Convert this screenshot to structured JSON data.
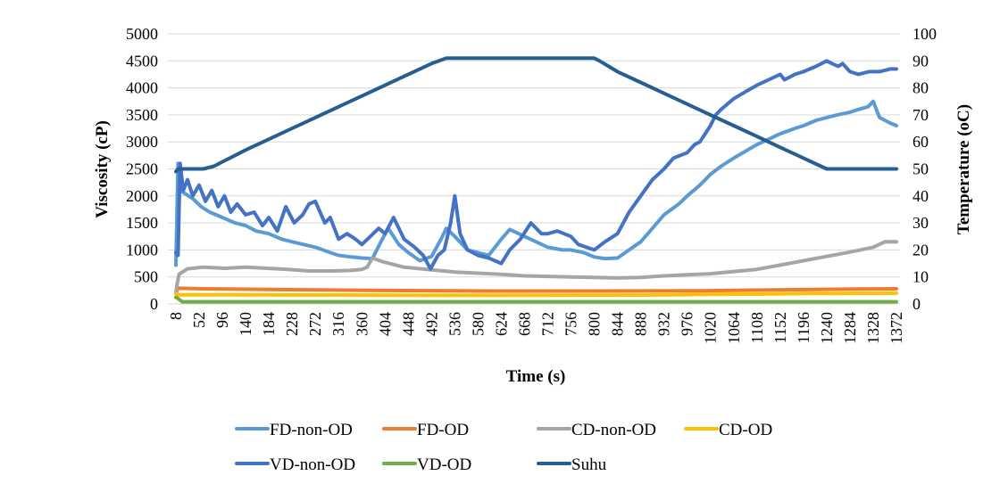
{
  "chart_data": {
    "type": "line",
    "title": "",
    "xlabel": "Time (s)",
    "ylabel": "Viscosity (cP)",
    "y2label": "Temperature (oC)",
    "ylim": [
      0,
      5000
    ],
    "y2lim": [
      0,
      100
    ],
    "yticks": [
      "0",
      "500",
      "1000",
      "1500",
      "2000",
      "2500",
      "3000",
      "3500",
      "4000",
      "4500",
      "5000"
    ],
    "y2ticks": [
      "0",
      "10",
      "20",
      "30",
      "40",
      "50",
      "60",
      "70",
      "80",
      "90",
      "100"
    ],
    "xticks": [
      "8",
      "52",
      "96",
      "140",
      "184",
      "228",
      "272",
      "316",
      "360",
      "404",
      "448",
      "492",
      "536",
      "580",
      "624",
      "668",
      "712",
      "756",
      "800",
      "844",
      "888",
      "932",
      "976",
      "1020",
      "1064",
      "1108",
      "1152",
      "1196",
      "1240",
      "1284",
      "1328",
      "1372"
    ],
    "xlim": [
      8,
      1372
    ],
    "grid": true,
    "legend_position": "bottom",
    "series": [
      {
        "name": "FD-non-OD",
        "axis": "left",
        "color": "#5B9BD5",
        "x": [
          8,
          12,
          16,
          24,
          40,
          56,
          72,
          96,
          120,
          140,
          160,
          184,
          208,
          228,
          250,
          272,
          300,
          316,
          340,
          360,
          380,
          396,
          410,
          430,
          448,
          470,
          492,
          510,
          520,
          536,
          560,
          580,
          600,
          624,
          640,
          668,
          690,
          712,
          740,
          756,
          780,
          800,
          820,
          844,
          866,
          888,
          910,
          932,
          960,
          976,
          1000,
          1020,
          1040,
          1064,
          1090,
          1108,
          1130,
          1152,
          1180,
          1196,
          1220,
          1240,
          1260,
          1284,
          1300,
          1318,
          1328,
          1340,
          1360,
          1372
        ],
        "y": [
          720,
          2600,
          2100,
          2050,
          1950,
          1800,
          1700,
          1600,
          1500,
          1450,
          1350,
          1300,
          1200,
          1150,
          1100,
          1050,
          950,
          900,
          870,
          850,
          840,
          1150,
          1400,
          1100,
          950,
          800,
          880,
          1200,
          1400,
          1250,
          1000,
          950,
          900,
          1200,
          1380,
          1250,
          1150,
          1050,
          1000,
          1000,
          950,
          870,
          840,
          850,
          1000,
          1150,
          1400,
          1650,
          1850,
          2000,
          2200,
          2400,
          2550,
          2700,
          2850,
          2950,
          3050,
          3150,
          3250,
          3300,
          3400,
          3450,
          3500,
          3550,
          3600,
          3650,
          3750,
          3450,
          3350,
          3300
        ]
      },
      {
        "name": "FD-OD",
        "axis": "left",
        "color": "#ED7D31",
        "x": [
          8,
          12,
          60,
          200,
          400,
          600,
          800,
          1000,
          1100,
          1200,
          1300,
          1372
        ],
        "y": [
          200,
          290,
          280,
          265,
          250,
          240,
          240,
          245,
          255,
          265,
          275,
          280
        ]
      },
      {
        "name": "CD-non-OD",
        "axis": "left",
        "color": "#A5A5A5",
        "x": [
          8,
          10,
          14,
          30,
          60,
          100,
          140,
          180,
          220,
          260,
          300,
          340,
          360,
          370,
          380,
          400,
          440,
          492,
          536,
          580,
          624,
          668,
          712,
          756,
          800,
          844,
          888,
          932,
          976,
          1020,
          1064,
          1108,
          1152,
          1196,
          1240,
          1284,
          1328,
          1350,
          1372
        ],
        "y": [
          200,
          350,
          550,
          650,
          680,
          660,
          680,
          660,
          640,
          610,
          610,
          620,
          640,
          680,
          850,
          780,
          680,
          630,
          590,
          570,
          550,
          520,
          510,
          500,
          490,
          480,
          490,
          520,
          540,
          560,
          600,
          640,
          720,
          800,
          880,
          960,
          1050,
          1150,
          1150
        ]
      },
      {
        "name": "CD-OD",
        "axis": "left",
        "color": "#FFC000",
        "x": [
          8,
          12,
          100,
          300,
          460,
          600,
          900,
          1000,
          1150,
          1200,
          1372
        ],
        "y": [
          190,
          170,
          170,
          165,
          160,
          160,
          165,
          175,
          185,
          195,
          200
        ]
      },
      {
        "name": "VD-non-OD",
        "axis": "left",
        "color": "#4472C4",
        "x": [
          8,
          12,
          16,
          22,
          30,
          40,
          52,
          64,
          76,
          88,
          100,
          112,
          124,
          140,
          156,
          172,
          184,
          200,
          216,
          232,
          248,
          260,
          272,
          290,
          300,
          316,
          332,
          348,
          360,
          376,
          392,
          404,
          420,
          440,
          460,
          476,
          490,
          504,
          516,
          528,
          536,
          546,
          560,
          580,
          600,
          624,
          640,
          660,
          680,
          700,
          712,
          730,
          756,
          770,
          800,
          820,
          844,
          866,
          888,
          910,
          932,
          950,
          976,
          990,
          1000,
          1020,
          1030,
          1040,
          1064,
          1090,
          1108,
          1130,
          1152,
          1160,
          1180,
          1196,
          1220,
          1240,
          1250,
          1262,
          1270,
          1284,
          1300,
          1320,
          1340,
          1360,
          1372
        ],
        "y": [
          950,
          900,
          2600,
          2100,
          2300,
          2000,
          2200,
          1900,
          2100,
          1800,
          2000,
          1700,
          1850,
          1650,
          1700,
          1450,
          1600,
          1350,
          1800,
          1500,
          1650,
          1850,
          1900,
          1500,
          1600,
          1200,
          1300,
          1200,
          1100,
          1250,
          1400,
          1300,
          1600,
          1200,
          1050,
          900,
          650,
          900,
          1000,
          1500,
          2000,
          1300,
          1000,
          900,
          850,
          750,
          1000,
          1200,
          1500,
          1300,
          1300,
          1350,
          1250,
          1100,
          1000,
          1150,
          1300,
          1700,
          2000,
          2300,
          2500,
          2700,
          2800,
          2950,
          3000,
          3300,
          3500,
          3600,
          3800,
          3950,
          4050,
          4150,
          4250,
          4150,
          4250,
          4300,
          4400,
          4500,
          4450,
          4400,
          4450,
          4300,
          4250,
          4300,
          4300,
          4350,
          4350
        ]
      },
      {
        "name": "VD-OD",
        "axis": "left",
        "color": "#70AD47",
        "x": [
          8,
          12,
          20,
          200,
          600,
          1000,
          1372
        ],
        "y": [
          120,
          100,
          40,
          40,
          40,
          40,
          40
        ]
      },
      {
        "name": "Suhu",
        "axis": "right",
        "color": "#255E91",
        "x": [
          8,
          12,
          60,
          80,
          100,
          140,
          184,
          228,
          272,
          316,
          360,
          404,
          448,
          492,
          520,
          530,
          600,
          700,
          800,
          810,
          844,
          888,
          932,
          976,
          1020,
          1064,
          1108,
          1152,
          1196,
          1240,
          1260,
          1300,
          1372
        ],
        "y": [
          49,
          50,
          50,
          51,
          53,
          57,
          61,
          65,
          69,
          73,
          77,
          81,
          85,
          89,
          91,
          91,
          91,
          91,
          91,
          90,
          86,
          82,
          78,
          74,
          70,
          66,
          62,
          58,
          54,
          50,
          50,
          50,
          50
        ]
      }
    ]
  },
  "legend": {
    "items": [
      {
        "label": "FD-non-OD",
        "color": "#5B9BD5"
      },
      {
        "label": "FD-OD",
        "color": "#ED7D31"
      },
      {
        "label": "CD-non-OD",
        "color": "#A5A5A5"
      },
      {
        "label": "CD-OD",
        "color": "#FFC000"
      },
      {
        "label": "VD-non-OD",
        "color": "#4472C4"
      },
      {
        "label": "VD-OD",
        "color": "#70AD47"
      },
      {
        "label": "Suhu",
        "color": "#255E91"
      }
    ]
  }
}
